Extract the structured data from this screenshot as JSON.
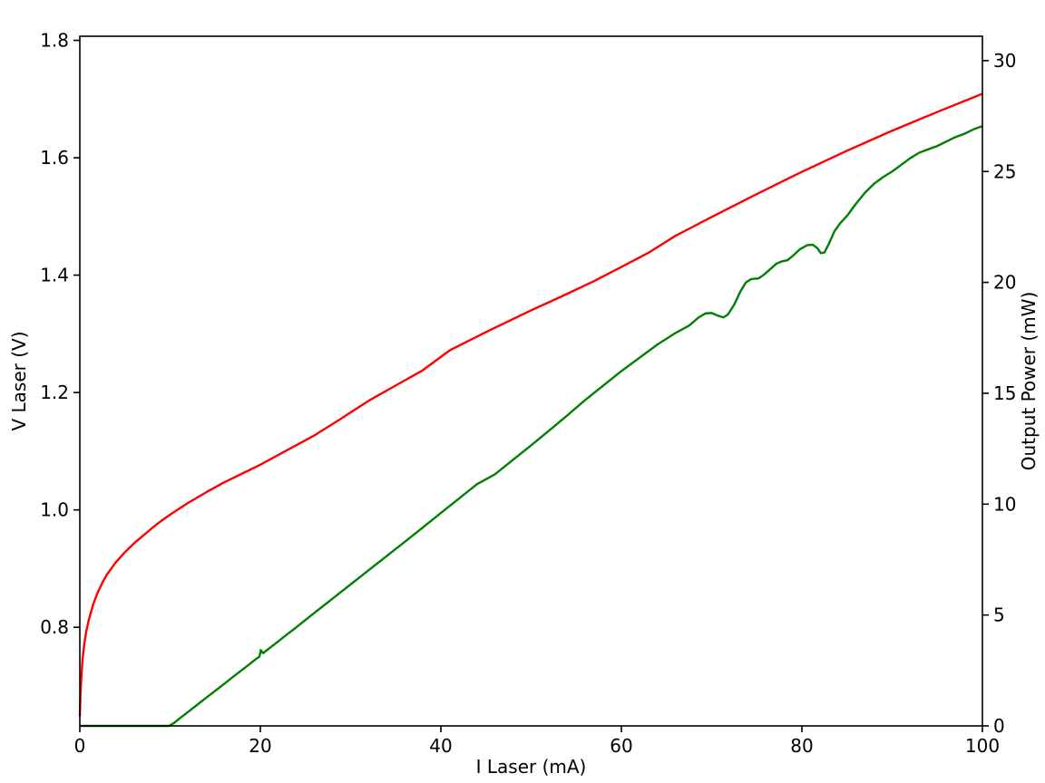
{
  "chart_data": {
    "type": "line",
    "title": "",
    "xlabel": "I Laser (mA)",
    "ylabel_left": "V Laser (V)",
    "ylabel_right": "Output Power (mW)",
    "grid": false,
    "legend_position": "none",
    "xlim": [
      0,
      100
    ],
    "ylim_left": [
      0.632,
      1.807
    ],
    "ylim_right": [
      0,
      31.1
    ],
    "xticks": [
      {
        "value": 0,
        "label": "0"
      },
      {
        "value": 20,
        "label": "20"
      },
      {
        "value": 40,
        "label": "40"
      },
      {
        "value": 60,
        "label": "60"
      },
      {
        "value": 80,
        "label": "80"
      },
      {
        "value": 100,
        "label": "100"
      }
    ],
    "yticks_left": [
      {
        "value": 0.8,
        "label": "0.8"
      },
      {
        "value": 1.0,
        "label": "1.0"
      },
      {
        "value": 1.2,
        "label": "1.2"
      },
      {
        "value": 1.4,
        "label": "1.4"
      },
      {
        "value": 1.6,
        "label": "1.6"
      },
      {
        "value": 1.8,
        "label": "1.8"
      }
    ],
    "yticks_right": [
      {
        "value": 0,
        "label": "0"
      },
      {
        "value": 5,
        "label": "5"
      },
      {
        "value": 10,
        "label": "10"
      },
      {
        "value": 15,
        "label": "15"
      },
      {
        "value": 20,
        "label": "20"
      },
      {
        "value": 25,
        "label": "25"
      },
      {
        "value": 30,
        "label": "30"
      }
    ],
    "series": [
      {
        "name": "V Laser (V)",
        "axis": "left",
        "color": "#ff0000",
        "x": [
          0,
          0.05,
          0.1,
          0.2,
          0.3,
          0.5,
          0.7,
          1.0,
          1.5,
          2.0,
          2.5,
          3.0,
          4.0,
          5.0,
          6.0,
          7.0,
          8.0,
          9.0,
          10,
          11,
          12,
          14,
          16,
          18,
          20,
          23,
          26,
          29,
          32,
          35,
          38,
          41,
          45,
          50,
          53,
          57,
          60,
          63,
          66,
          70,
          75,
          80,
          85,
          90,
          95,
          100
        ],
        "y": [
          0.648,
          0.675,
          0.695,
          0.722,
          0.745,
          0.772,
          0.792,
          0.813,
          0.84,
          0.86,
          0.876,
          0.89,
          0.911,
          0.928,
          0.943,
          0.956,
          0.969,
          0.981,
          0.992,
          1.002,
          1.012,
          1.03,
          1.047,
          1.062,
          1.077,
          1.102,
          1.127,
          1.156,
          1.186,
          1.212,
          1.238,
          1.272,
          1.303,
          1.34,
          1.361,
          1.39,
          1.414,
          1.438,
          1.467,
          1.499,
          1.538,
          1.576,
          1.612,
          1.646,
          1.678,
          1.709
        ]
      },
      {
        "name": "Output Power (mW)",
        "axis": "right",
        "color": "#008000",
        "x": [
          0,
          9.9,
          10.5,
          11,
          12,
          13,
          14,
          15,
          16,
          17,
          18,
          19,
          19.6,
          19.9,
          20.05,
          20.3,
          21,
          22,
          23,
          24,
          25,
          26,
          27,
          28,
          29,
          30,
          32,
          34,
          36,
          38,
          40,
          42,
          44,
          46,
          48,
          50,
          52,
          54,
          56,
          58,
          60,
          62,
          64,
          66,
          67.5,
          68.5,
          69.3,
          70,
          70.7,
          71.3,
          71.8,
          72.5,
          73.2,
          73.8,
          74.4,
          75.2,
          75.8,
          76.5,
          77.2,
          77.8,
          78.4,
          79,
          79.8,
          80.6,
          81.2,
          81.7,
          82.1,
          82.5,
          83,
          83.6,
          84.2,
          85,
          86,
          87,
          88,
          89,
          90,
          91,
          92,
          93,
          94,
          95,
          96,
          97,
          98,
          99,
          100
        ],
        "y": [
          0,
          0,
          0.15,
          0.32,
          0.63,
          0.95,
          1.27,
          1.58,
          1.9,
          2.22,
          2.53,
          2.85,
          3.04,
          3.12,
          3.42,
          3.28,
          3.5,
          3.82,
          4.14,
          4.45,
          4.78,
          5.1,
          5.42,
          5.74,
          6.06,
          6.38,
          7.02,
          7.66,
          8.3,
          8.95,
          9.6,
          10.25,
          10.9,
          11.35,
          12.0,
          12.65,
          13.32,
          14.0,
          14.7,
          15.35,
          16.0,
          16.6,
          17.2,
          17.72,
          18.05,
          18.4,
          18.6,
          18.62,
          18.5,
          18.42,
          18.55,
          19.0,
          19.6,
          20.0,
          20.15,
          20.18,
          20.35,
          20.6,
          20.85,
          20.95,
          21.0,
          21.2,
          21.5,
          21.68,
          21.7,
          21.55,
          21.32,
          21.35,
          21.75,
          22.3,
          22.65,
          23.0,
          23.55,
          24.05,
          24.45,
          24.75,
          25.0,
          25.3,
          25.6,
          25.85,
          26.0,
          26.15,
          26.35,
          26.55,
          26.7,
          26.9,
          27.05
        ]
      }
    ],
    "style": {
      "spine_color": "#000000",
      "spine_width": 1.6,
      "tick_length": 7,
      "line_width": 2.4,
      "background": "#ffffff"
    }
  }
}
